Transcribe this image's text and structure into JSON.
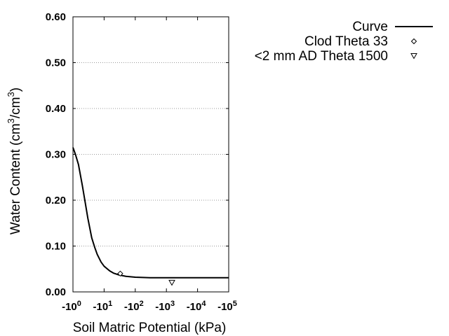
{
  "chart_data": {
    "type": "line",
    "title": "",
    "xlabel": "Soil Matric Potential (kPa)",
    "ylabel": {
      "main": "Water Content (cm",
      "sup1": "3",
      "mid": "/cm",
      "sup2": "3",
      "end": ")"
    },
    "x_scale": "log",
    "xlim": [
      1,
      100000
    ],
    "ylim": [
      0,
      0.6
    ],
    "grid": {
      "y": true,
      "x": false,
      "style": "dotted"
    },
    "legend_placement": "top-right, outside plot",
    "xticks": [
      {
        "value": 1,
        "base": "-10",
        "exp": "0"
      },
      {
        "value": 10,
        "base": "-10",
        "exp": "1"
      },
      {
        "value": 100,
        "base": "-10",
        "exp": "2"
      },
      {
        "value": 1000,
        "base": "-10",
        "exp": "3"
      },
      {
        "value": 10000,
        "base": "-10",
        "exp": "4"
      },
      {
        "value": 100000,
        "base": "-10",
        "exp": "5"
      }
    ],
    "yticks": [
      {
        "value": 0.0,
        "label": "0.00"
      },
      {
        "value": 0.1,
        "label": "0.10"
      },
      {
        "value": 0.2,
        "label": "0.20"
      },
      {
        "value": 0.3,
        "label": "0.30"
      },
      {
        "value": 0.4,
        "label": "0.40"
      },
      {
        "value": 0.5,
        "label": "0.50"
      },
      {
        "value": 0.6,
        "label": "0.60"
      }
    ],
    "series": [
      {
        "name": "Curve",
        "kind": "line",
        "color": "#000000",
        "points": [
          {
            "x": 1,
            "y": 0.315
          },
          {
            "x": 1.2,
            "y": 0.3
          },
          {
            "x": 1.5,
            "y": 0.278
          },
          {
            "x": 2,
            "y": 0.232
          },
          {
            "x": 2.5,
            "y": 0.193
          },
          {
            "x": 3,
            "y": 0.161
          },
          {
            "x": 4,
            "y": 0.118
          },
          {
            "x": 5,
            "y": 0.097
          },
          {
            "x": 6,
            "y": 0.082
          },
          {
            "x": 8,
            "y": 0.065
          },
          {
            "x": 10,
            "y": 0.056
          },
          {
            "x": 15,
            "y": 0.046
          },
          {
            "x": 20,
            "y": 0.041
          },
          {
            "x": 30,
            "y": 0.037
          },
          {
            "x": 50,
            "y": 0.034
          },
          {
            "x": 100,
            "y": 0.032
          },
          {
            "x": 300,
            "y": 0.031
          },
          {
            "x": 1000,
            "y": 0.031
          },
          {
            "x": 10000,
            "y": 0.031
          },
          {
            "x": 100000,
            "y": 0.031
          }
        ]
      },
      {
        "name": "Clod Theta 33",
        "kind": "marker",
        "marker": "diamond",
        "color": "#000000",
        "points": [
          {
            "x": 33,
            "y": 0.04
          }
        ]
      },
      {
        "name": "<2 mm AD Theta 1500",
        "kind": "marker",
        "marker": "triangle-down",
        "color": "#000000",
        "points": [
          {
            "x": 1500,
            "y": 0.02
          }
        ]
      }
    ]
  }
}
